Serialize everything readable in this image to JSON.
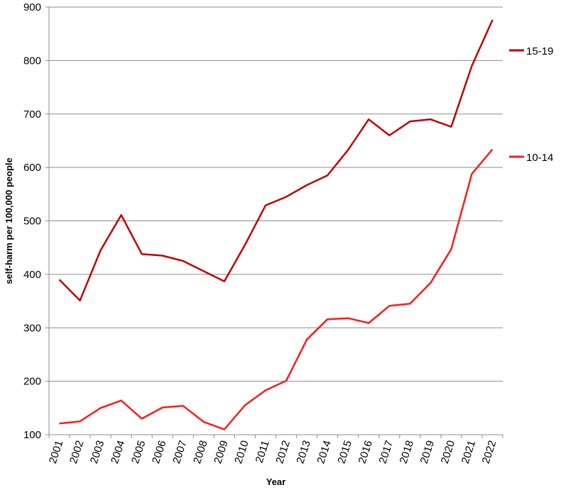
{
  "chart_data": {
    "type": "line",
    "title": "",
    "xlabel": "Year",
    "ylabel": "self-harm per 100,000 people",
    "ylim": [
      100,
      900
    ],
    "yticks": [
      100,
      200,
      300,
      400,
      500,
      600,
      700,
      800,
      900
    ],
    "grid": true,
    "legend_position": "right",
    "x": [
      "2001",
      "2002",
      "2003",
      "2004",
      "2005",
      "2006",
      "2007",
      "2008",
      "2009",
      "2010",
      "2011",
      "2012",
      "2013",
      "2014",
      "2015",
      "2016",
      "2017",
      "2018",
      "2019",
      "2020",
      "2021",
      "2022"
    ],
    "series": [
      {
        "name": "15-19",
        "color": "#c00000",
        "values": [
          390,
          351,
          445,
          511,
          438,
          435,
          425,
          406,
          387,
          455,
          529,
          545,
          567,
          585,
          633,
          690,
          660,
          686,
          690,
          676,
          790,
          876
        ]
      },
      {
        "name": "10-14",
        "color": "#ff1a1a",
        "values": [
          121,
          125,
          150,
          164,
          130,
          151,
          154,
          124,
          110,
          155,
          183,
          201,
          278,
          316,
          318,
          309,
          341,
          345,
          384,
          447,
          588,
          634
        ]
      }
    ]
  }
}
